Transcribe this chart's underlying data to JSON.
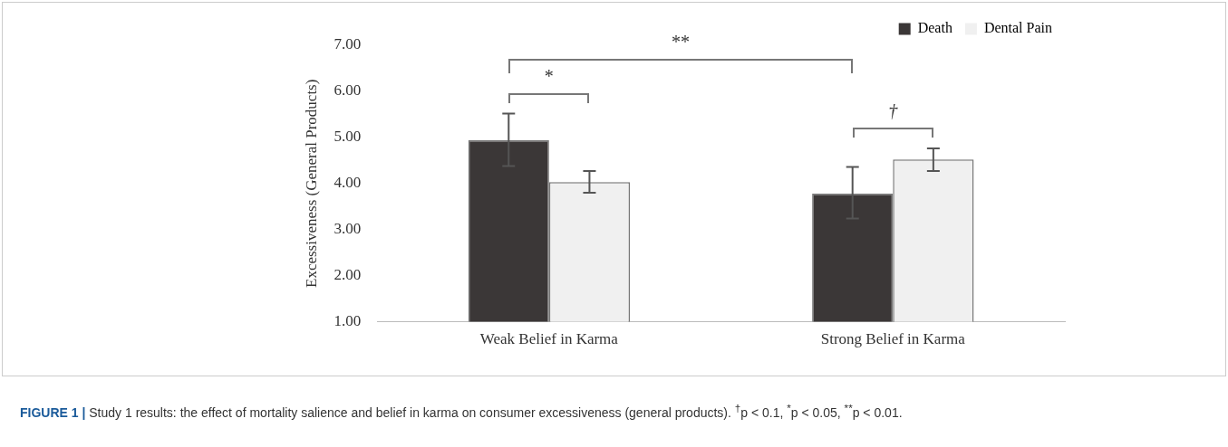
{
  "chart_data": {
    "type": "bar",
    "categories": [
      "Weak Belief in Karma",
      "Strong Belief in Karma"
    ],
    "ylabel": "Excessiveness (General Products)",
    "series": [
      {
        "name": "Death",
        "color": "#3b3737",
        "values": [
          4.94,
          3.78
        ],
        "errors": [
          [
            4.38,
            5.52
          ],
          [
            3.24,
            4.36
          ]
        ]
      },
      {
        "name": "Dental Pain",
        "color": "#f0f0f0",
        "values": [
          4.03,
          4.52
        ],
        "errors": [
          [
            3.8,
            4.27
          ],
          [
            4.27,
            4.76
          ]
        ]
      }
    ],
    "ylim": [
      1,
      7
    ],
    "yticks": [
      {
        "value": 1,
        "label": "1.00"
      },
      {
        "value": 2,
        "label": "2.00"
      },
      {
        "value": 3,
        "label": "3.00"
      },
      {
        "value": 4,
        "label": "4.00"
      },
      {
        "value": 5,
        "label": "5.00"
      },
      {
        "value": 6,
        "label": "6.00"
      },
      {
        "value": 7,
        "label": "7.00"
      }
    ],
    "grid": false,
    "legend": "top right",
    "annotations": [
      "**",
      "*",
      "†",
      "FIGURE 1 |",
      "Study 1 results: the effect of mortality salience and belief in karma on consumer excessiveness (general products). $^{†}$p < 0.1, $^{*}$p < 0.05, $^{**}$p < 0.01."
    ]
  }
}
